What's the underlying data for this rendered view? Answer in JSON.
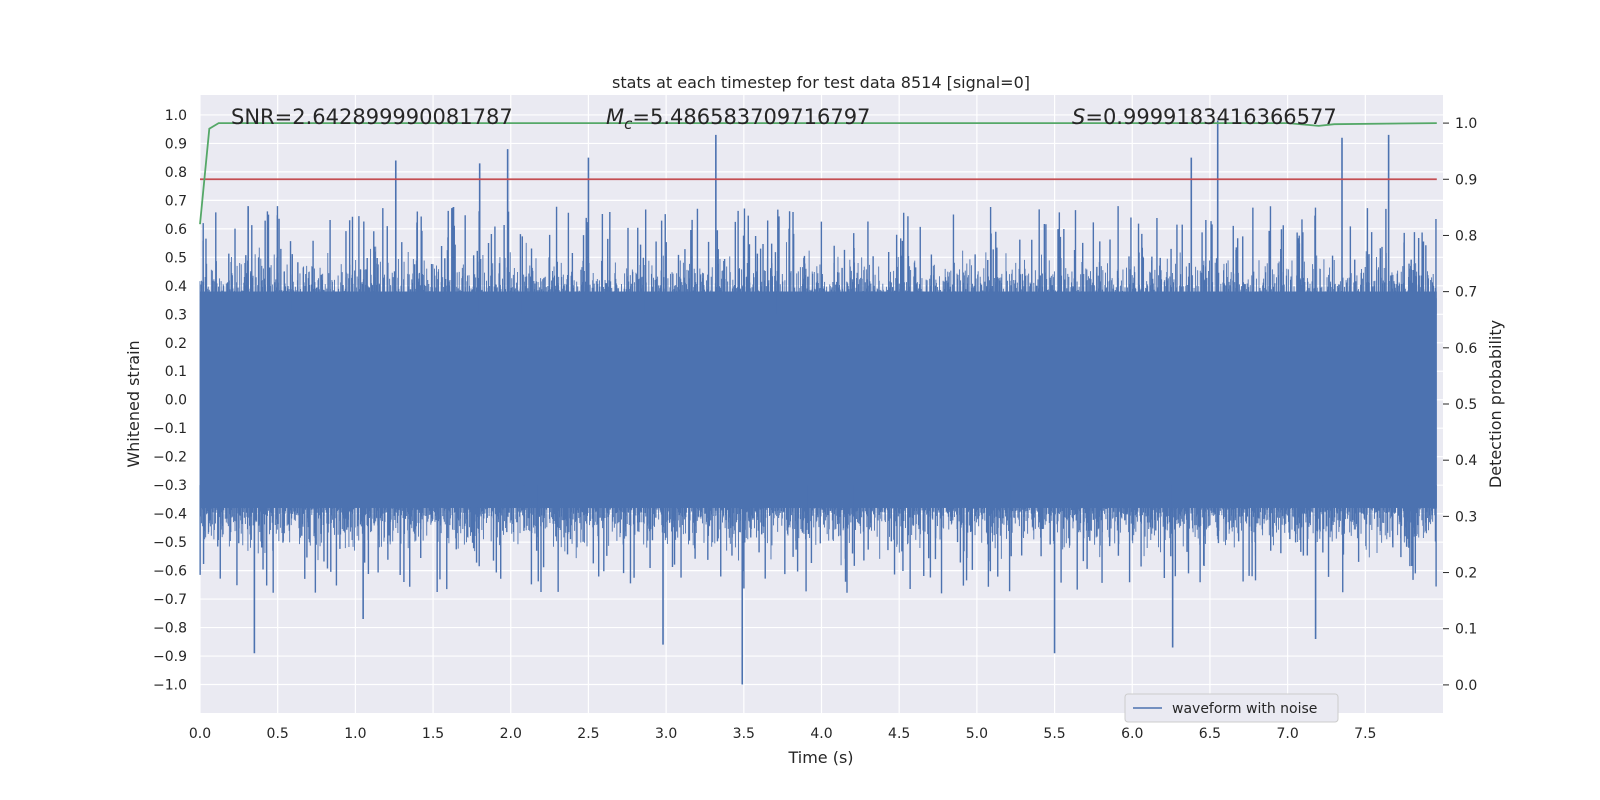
{
  "chart_data": {
    "type": "line",
    "title": "stats at each timestep for test data 8514 [signal=0]",
    "xlabel": "Time (s)",
    "ylabel_left": "Whitened strain",
    "ylabel_right": "Detection probability",
    "xlim": [
      0.0,
      8.0
    ],
    "ylim_left": [
      -1.1,
      1.07
    ],
    "ylim_right": [
      -0.05,
      1.05
    ],
    "x_ticks": [
      "0.0",
      "0.5",
      "1.0",
      "1.5",
      "2.0",
      "2.5",
      "3.0",
      "3.5",
      "4.0",
      "4.5",
      "5.0",
      "5.5",
      "6.0",
      "6.5",
      "7.0",
      "7.5"
    ],
    "y_ticks_left": [
      "1.0",
      "0.9",
      "0.8",
      "0.7",
      "0.6",
      "0.5",
      "0.4",
      "0.3",
      "0.2",
      "0.1",
      "0.0",
      "−0.1",
      "−0.2",
      "−0.3",
      "−0.4",
      "−0.5",
      "−0.6",
      "−0.7",
      "−0.8",
      "−0.9",
      "−1.0"
    ],
    "y_ticks_right": [
      "1.0",
      "0.9",
      "0.8",
      "0.7",
      "0.6",
      "0.5",
      "0.4",
      "0.3",
      "0.2",
      "0.1",
      "0.0"
    ],
    "grid": true,
    "legend_position": "bottom-right",
    "series": [
      {
        "name": "waveform with noise",
        "axis": "left",
        "color": "#4c72b0",
        "description": "dense whitened-strain noise, approx range -1.0 to 0.98",
        "band_core": [
          -0.38,
          0.38
        ],
        "spikes_high": [
          [
            0.31,
            0.68
          ],
          [
            1.26,
            0.84
          ],
          [
            1.8,
            0.83
          ],
          [
            1.98,
            0.88
          ],
          [
            2.5,
            0.85
          ],
          [
            3.32,
            0.93
          ],
          [
            6.38,
            0.85
          ],
          [
            6.55,
            0.98
          ],
          [
            7.35,
            0.92
          ],
          [
            7.65,
            0.93
          ]
        ],
        "spikes_low": [
          [
            0.35,
            -0.89
          ],
          [
            1.05,
            -0.77
          ],
          [
            2.98,
            -0.86
          ],
          [
            3.49,
            -1.0
          ],
          [
            5.5,
            -0.89
          ],
          [
            6.26,
            -0.87
          ],
          [
            7.18,
            -0.84
          ]
        ]
      },
      {
        "name": "detection probability",
        "axis": "right",
        "color": "#55a868",
        "x": [
          0.0,
          0.06,
          0.12,
          7.0,
          7.12,
          7.2,
          7.3,
          7.96
        ],
        "values": [
          0.82,
          0.99,
          1.0,
          1.0,
          0.997,
          0.995,
          0.998,
          1.0
        ]
      },
      {
        "name": "threshold",
        "axis": "right",
        "color": "#c44e52",
        "x": [
          0.0,
          7.96
        ],
        "values": [
          0.9,
          0.9
        ]
      }
    ],
    "annotations": {
      "snr": "SNR=2.642899990081787",
      "mc_prefix": "M",
      "mc_sub": "c",
      "mc_value": "=5.486583709716797",
      "s_prefix": "S",
      "s_value": "=0.9999183416366577"
    },
    "legend_label": "waveform with noise",
    "colors": {
      "plot_bg": "#eaeaf2",
      "grid": "#ffffff",
      "text": "#262626"
    }
  }
}
